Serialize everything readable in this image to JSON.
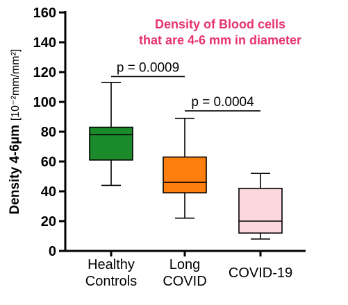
{
  "chart_data": {
    "type": "box",
    "title_lines": [
      "Density of Blood cells",
      "that are 4-6 mm in diameter"
    ],
    "title_color": "#e8336d",
    "ylabel": "Density 4-6µm",
    "ylabel_unit": "[10⁻²mm/mm²]",
    "ylim": [
      0,
      160
    ],
    "yticks": [
      0,
      20,
      40,
      60,
      80,
      100,
      120,
      140,
      160
    ],
    "ytick_labels": [
      "0",
      "20",
      "40",
      "60",
      "80",
      "100",
      "120",
      "140",
      "160"
    ],
    "categories": [
      {
        "lines": [
          "Healthy",
          "Controls"
        ]
      },
      {
        "lines": [
          "Long",
          "COVID"
        ]
      },
      {
        "lines": [
          "COVID-19"
        ]
      }
    ],
    "boxes": [
      {
        "whisker_low": 44,
        "q1": 61,
        "median": 78,
        "q3": 83,
        "whisker_high": 113,
        "color": "#1a8a2a",
        "median_color": "#000000"
      },
      {
        "whisker_low": 22,
        "q1": 39,
        "median": 46,
        "q3": 63,
        "whisker_high": 89,
        "color": "#ff7f0e",
        "median_color": "#000000"
      },
      {
        "whisker_low": 8,
        "q1": 12,
        "median": 20,
        "q3": 42,
        "whisker_high": 52,
        "color": "#fcd8de",
        "median_color": "#000000"
      }
    ],
    "annotations": [
      {
        "text": "p = 0.0009",
        "from": 0,
        "to": 1,
        "y": 117
      },
      {
        "text": "p = 0.0004",
        "from": 1,
        "to": 2,
        "y": 94
      }
    ]
  }
}
